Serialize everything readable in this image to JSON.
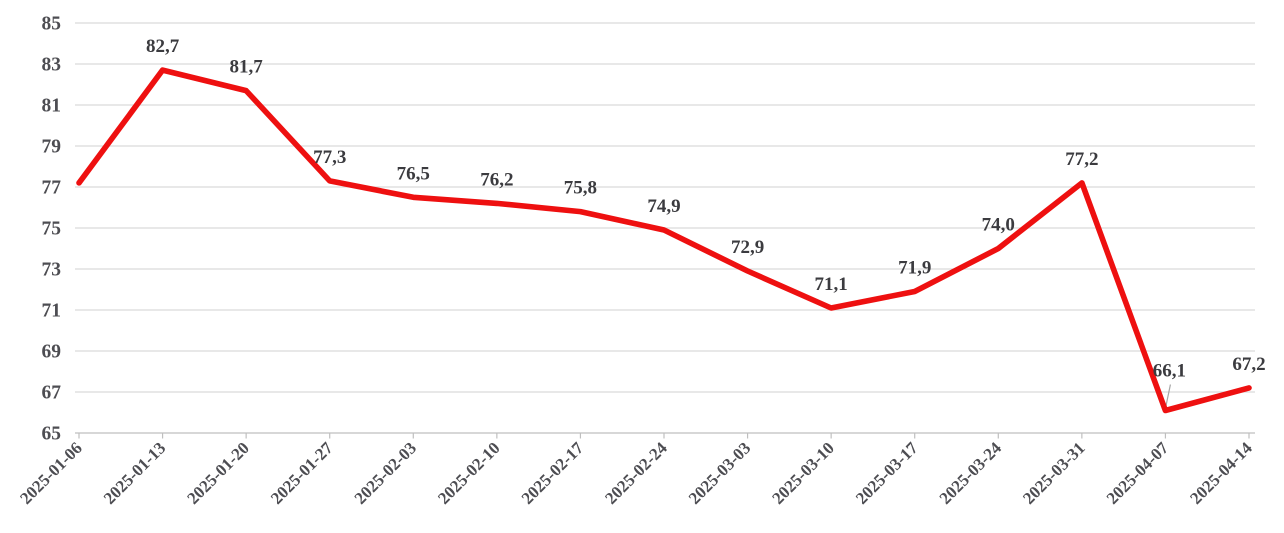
{
  "chart_data": {
    "type": "line",
    "title": "",
    "categories": [
      "2025-01-06",
      "2025-01-13",
      "2025-01-20",
      "2025-01-27",
      "2025-02-03",
      "2025-02-10",
      "2025-02-17",
      "2025-02-24",
      "2025-03-03",
      "2025-03-10",
      "2025-03-17",
      "2025-03-24",
      "2025-03-31",
      "2025-04-07",
      "2025-04-14"
    ],
    "values": [
      77.2,
      82.7,
      81.7,
      77.3,
      76.5,
      76.2,
      75.8,
      74.9,
      72.9,
      71.1,
      71.9,
      74.0,
      77.2,
      66.1,
      67.2
    ],
    "data_labels": [
      "",
      "82,7",
      "81,7",
      "77,3",
      "76,5",
      "76,2",
      "75,8",
      "74,9",
      "72,9",
      "71,1",
      "71,9",
      "74,0",
      "77,2",
      "66,1",
      "67,2"
    ],
    "decimal_separator": ",",
    "y_ticks": [
      65,
      67,
      69,
      71,
      73,
      75,
      77,
      79,
      81,
      83,
      85
    ],
    "ylim": [
      65,
      85
    ],
    "xlabel": "",
    "ylabel": "",
    "legend": "none",
    "grid": "on",
    "x_label_rotation_deg": -45,
    "series_color": "#ee1010",
    "grid_color": "#d9d9d9",
    "axis_color": "#bfbfbf",
    "leader_line_color": "#a6a6a6",
    "axis_label_color": "#4d4d52",
    "data_label_color": "#3b3b3f",
    "callout": {
      "index": 13,
      "dx": 4,
      "dy": -34,
      "leader": true
    }
  }
}
